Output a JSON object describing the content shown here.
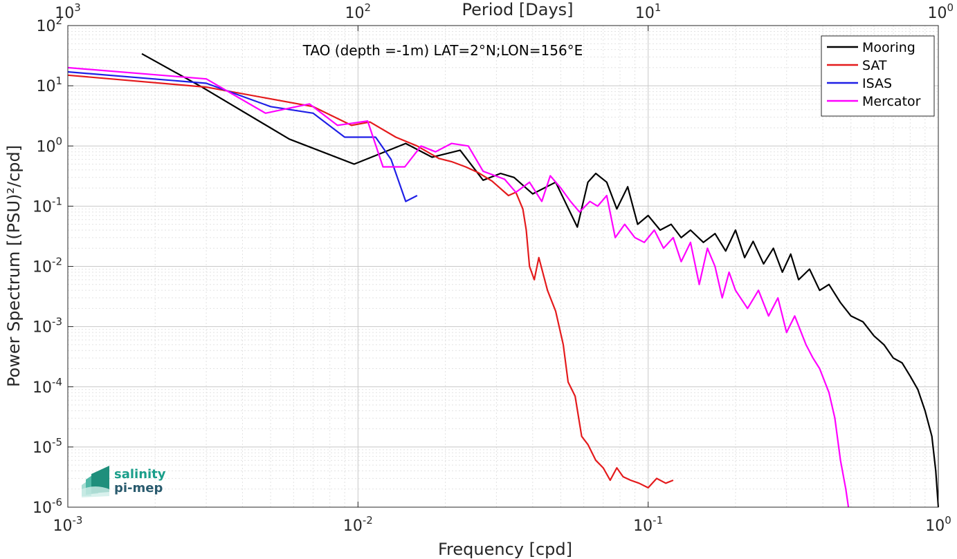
{
  "chart_data": {
    "type": "line",
    "title": "TAO (depth =-1m) LAT=2°N;LON=156°E",
    "xlabel": "Frequency [cpd]",
    "ylabel": "Power Spectrum [(PSU)²/cpd]",
    "top_xlabel": "Period [Days]",
    "x_scale": "log",
    "y_scale": "log",
    "xlim": [
      0.001,
      1
    ],
    "ylim": [
      1e-06,
      100
    ],
    "grid": true,
    "legend_position": "top-right",
    "x_ticks": [
      {
        "value": 0.001,
        "base": "10",
        "exp": "-3"
      },
      {
        "value": 0.01,
        "base": "10",
        "exp": "-2"
      },
      {
        "value": 0.1,
        "base": "10",
        "exp": "-1"
      },
      {
        "value": 1,
        "base": "10",
        "exp": "0"
      }
    ],
    "top_ticks": [
      {
        "period": 1000,
        "base": "10",
        "exp": "3"
      },
      {
        "period": 100,
        "base": "10",
        "exp": "2"
      },
      {
        "period": 10,
        "base": "10",
        "exp": "1"
      },
      {
        "period": 1,
        "base": "10",
        "exp": "0"
      }
    ],
    "y_ticks": [
      {
        "value": 100,
        "base": "10",
        "exp": "2"
      },
      {
        "value": 10,
        "base": "10",
        "exp": "1"
      },
      {
        "value": 1,
        "base": "10",
        "exp": "0"
      },
      {
        "value": 0.1,
        "base": "10",
        "exp": "-1"
      },
      {
        "value": 0.01,
        "base": "10",
        "exp": "-2"
      },
      {
        "value": 0.001,
        "base": "10",
        "exp": "-3"
      },
      {
        "value": 0.0001,
        "base": "10",
        "exp": "-4"
      },
      {
        "value": 1e-05,
        "base": "10",
        "exp": "-5"
      },
      {
        "value": 1e-06,
        "base": "10",
        "exp": "-6"
      }
    ],
    "series": [
      {
        "name": "Mooring",
        "color": "#000000",
        "points": [
          [
            0.0018,
            34
          ],
          [
            0.0029,
            9.5
          ],
          [
            0.0058,
            1.3
          ],
          [
            0.0097,
            0.5
          ],
          [
            0.0146,
            1.1
          ],
          [
            0.018,
            0.65
          ],
          [
            0.0225,
            0.85
          ],
          [
            0.027,
            0.27
          ],
          [
            0.031,
            0.35
          ],
          [
            0.0345,
            0.3
          ],
          [
            0.04,
            0.16
          ],
          [
            0.048,
            0.25
          ],
          [
            0.057,
            0.045
          ],
          [
            0.062,
            0.25
          ],
          [
            0.066,
            0.35
          ],
          [
            0.072,
            0.25
          ],
          [
            0.078,
            0.09
          ],
          [
            0.085,
            0.21
          ],
          [
            0.092,
            0.05
          ],
          [
            0.1,
            0.07
          ],
          [
            0.11,
            0.04
          ],
          [
            0.12,
            0.05
          ],
          [
            0.13,
            0.03
          ],
          [
            0.14,
            0.04
          ],
          [
            0.155,
            0.025
          ],
          [
            0.17,
            0.035
          ],
          [
            0.185,
            0.018
          ],
          [
            0.2,
            0.04
          ],
          [
            0.215,
            0.014
          ],
          [
            0.23,
            0.026
          ],
          [
            0.25,
            0.011
          ],
          [
            0.27,
            0.02
          ],
          [
            0.29,
            0.008
          ],
          [
            0.31,
            0.016
          ],
          [
            0.33,
            0.006
          ],
          [
            0.36,
            0.009
          ],
          [
            0.39,
            0.004
          ],
          [
            0.42,
            0.005
          ],
          [
            0.46,
            0.0025
          ],
          [
            0.5,
            0.0015
          ],
          [
            0.55,
            0.0012
          ],
          [
            0.6,
            0.0007
          ],
          [
            0.65,
            0.0005
          ],
          [
            0.7,
            0.0003
          ],
          [
            0.75,
            0.00025
          ],
          [
            0.8,
            0.00015
          ],
          [
            0.85,
            9e-05
          ],
          [
            0.9,
            4e-05
          ],
          [
            0.95,
            1.5e-05
          ],
          [
            0.98,
            4e-06
          ],
          [
            1.0,
            1e-06
          ]
        ]
      },
      {
        "name": "SAT",
        "color": "#e41a1c",
        "points": [
          [
            0.001,
            15
          ],
          [
            0.003,
            9.5
          ],
          [
            0.007,
            4.5
          ],
          [
            0.0095,
            2.2
          ],
          [
            0.011,
            2.5
          ],
          [
            0.0135,
            1.4
          ],
          [
            0.016,
            1.0
          ],
          [
            0.019,
            0.62
          ],
          [
            0.021,
            0.55
          ],
          [
            0.0235,
            0.45
          ],
          [
            0.026,
            0.36
          ],
          [
            0.029,
            0.26
          ],
          [
            0.033,
            0.15
          ],
          [
            0.035,
            0.17
          ],
          [
            0.037,
            0.09
          ],
          [
            0.038,
            0.04
          ],
          [
            0.039,
            0.01
          ],
          [
            0.0405,
            0.006
          ],
          [
            0.042,
            0.014
          ],
          [
            0.045,
            0.004
          ],
          [
            0.048,
            0.0018
          ],
          [
            0.051,
            0.0005
          ],
          [
            0.053,
            0.00012
          ],
          [
            0.056,
            7e-05
          ],
          [
            0.059,
            1.5e-05
          ],
          [
            0.062,
            1.1e-05
          ],
          [
            0.066,
            6e-06
          ],
          [
            0.07,
            4.5e-06
          ],
          [
            0.074,
            2.8e-06
          ],
          [
            0.078,
            4.5e-06
          ],
          [
            0.082,
            3.2e-06
          ],
          [
            0.087,
            2.8e-06
          ],
          [
            0.093,
            2.5e-06
          ],
          [
            0.1,
            2.1e-06
          ],
          [
            0.107,
            3e-06
          ],
          [
            0.115,
            2.5e-06
          ],
          [
            0.122,
            2.8e-06
          ]
        ]
      },
      {
        "name": "ISAS",
        "color": "#1f1fe6",
        "points": [
          [
            0.001,
            17
          ],
          [
            0.003,
            11
          ],
          [
            0.005,
            4.5
          ],
          [
            0.007,
            3.5
          ],
          [
            0.009,
            1.4
          ],
          [
            0.0115,
            1.4
          ],
          [
            0.013,
            0.6
          ],
          [
            0.0146,
            0.12
          ],
          [
            0.016,
            0.15
          ]
        ]
      },
      {
        "name": "Mercator",
        "color": "#ff00ff",
        "points": [
          [
            0.001,
            20
          ],
          [
            0.003,
            13
          ],
          [
            0.0048,
            3.5
          ],
          [
            0.0068,
            5
          ],
          [
            0.0085,
            2.2
          ],
          [
            0.0108,
            2.6
          ],
          [
            0.0122,
            0.45
          ],
          [
            0.0145,
            0.45
          ],
          [
            0.0165,
            1.0
          ],
          [
            0.0185,
            0.8
          ],
          [
            0.021,
            1.1
          ],
          [
            0.024,
            1.0
          ],
          [
            0.027,
            0.38
          ],
          [
            0.032,
            0.28
          ],
          [
            0.035,
            0.17
          ],
          [
            0.039,
            0.25
          ],
          [
            0.043,
            0.12
          ],
          [
            0.046,
            0.32
          ],
          [
            0.05,
            0.2
          ],
          [
            0.054,
            0.12
          ],
          [
            0.058,
            0.08
          ],
          [
            0.063,
            0.12
          ],
          [
            0.067,
            0.1
          ],
          [
            0.072,
            0.15
          ],
          [
            0.077,
            0.03
          ],
          [
            0.083,
            0.05
          ],
          [
            0.09,
            0.03
          ],
          [
            0.097,
            0.025
          ],
          [
            0.105,
            0.04
          ],
          [
            0.113,
            0.02
          ],
          [
            0.122,
            0.03
          ],
          [
            0.13,
            0.012
          ],
          [
            0.14,
            0.025
          ],
          [
            0.15,
            0.005
          ],
          [
            0.16,
            0.02
          ],
          [
            0.17,
            0.01
          ],
          [
            0.18,
            0.003
          ],
          [
            0.19,
            0.008
          ],
          [
            0.2,
            0.004
          ],
          [
            0.22,
            0.002
          ],
          [
            0.24,
            0.004
          ],
          [
            0.26,
            0.0015
          ],
          [
            0.28,
            0.003
          ],
          [
            0.3,
            0.0008
          ],
          [
            0.32,
            0.0015
          ],
          [
            0.35,
            0.0005
          ],
          [
            0.37,
            0.0003
          ],
          [
            0.39,
            0.0002
          ],
          [
            0.42,
            8e-05
          ],
          [
            0.44,
            3e-05
          ],
          [
            0.46,
            6e-06
          ],
          [
            0.48,
            2e-06
          ],
          [
            0.49,
            1e-06
          ]
        ]
      }
    ]
  },
  "logo": {
    "line1": "salinity",
    "line2": "pi-mep"
  }
}
